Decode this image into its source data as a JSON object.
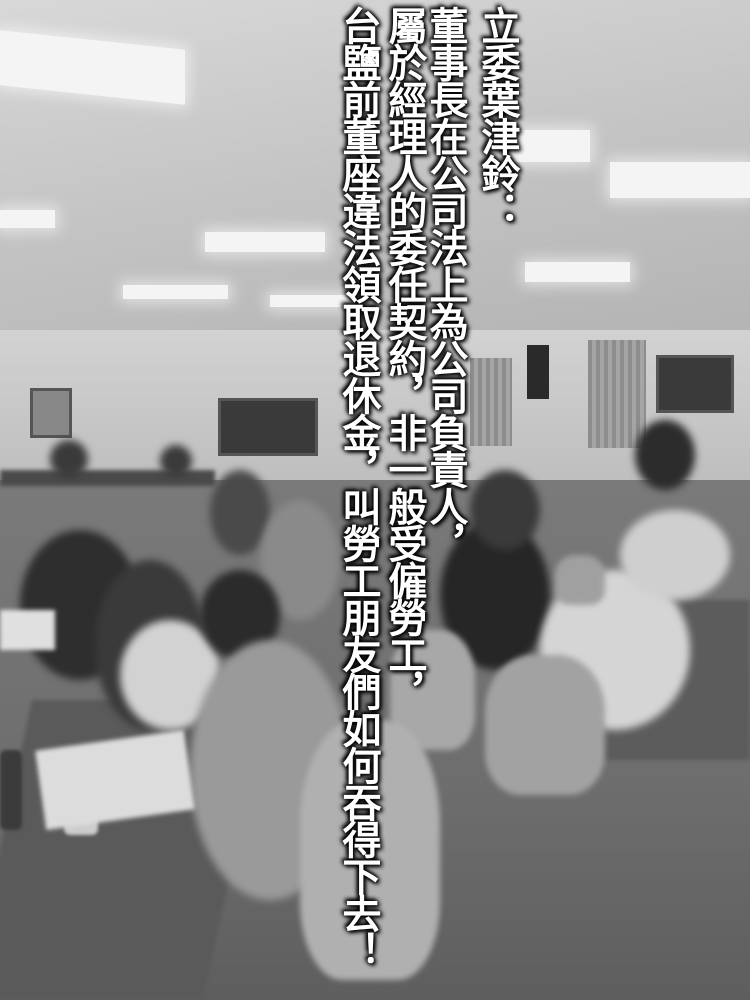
{
  "caption": {
    "line1": "立委葉津鈴：",
    "line2": "董事長在公司法上為公司負責人，",
    "line3": "屬於經理人的委任契約，非一般受僱勞工，",
    "line4": "台鹽前董座違法領取退休金，叫勞工朋友們如何吞得下去！"
  },
  "photo": {
    "subject": "meeting-room-crowd",
    "colors": {
      "ceiling": "#c4c4c4",
      "floor": "#6d6d6d",
      "text": "#ffffff"
    }
  }
}
